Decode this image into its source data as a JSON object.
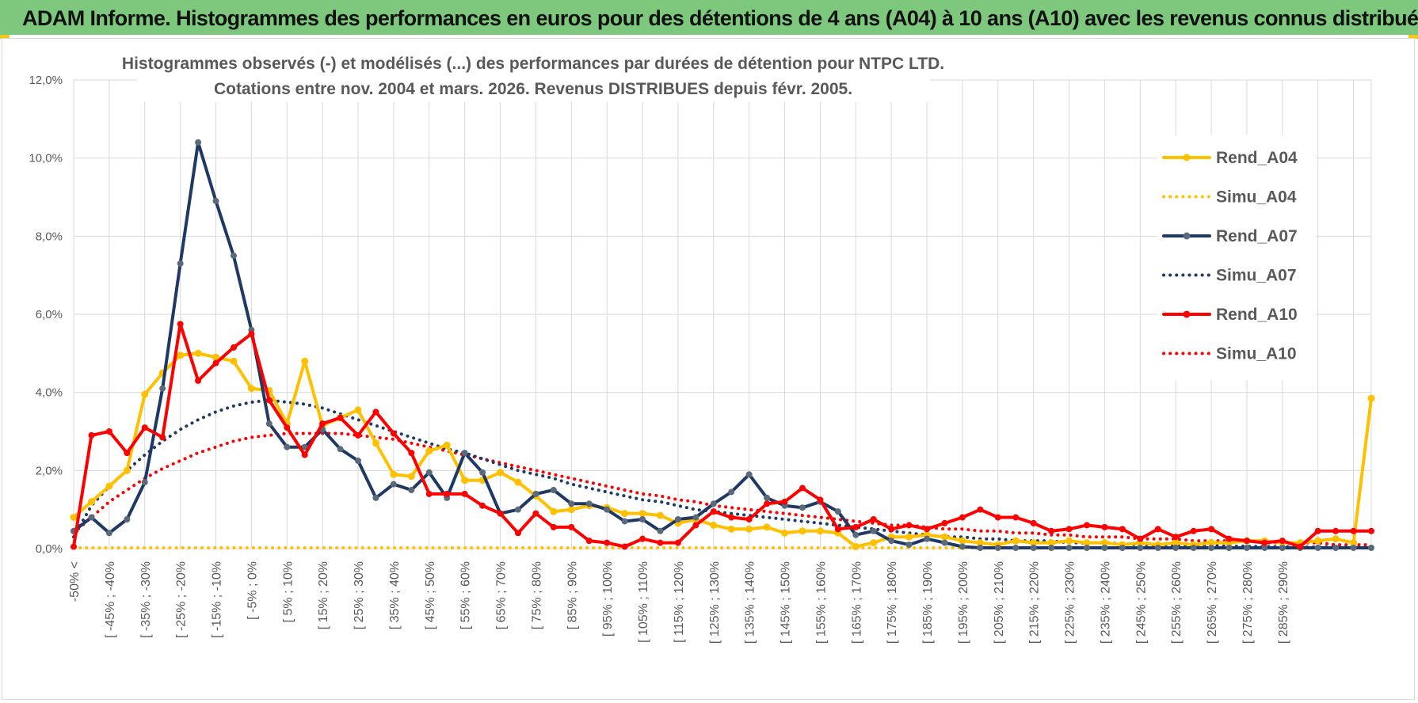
{
  "banner": {
    "title": "ADAM Informe. Histogrammes des performances en euros pour des détentions de 4 ans (A04) à 10 ans (A10) avec les revenus connus distribués"
  },
  "colors": {
    "banner_bg": "#7dc87d",
    "a04": "#ffc000",
    "a07": "#1f3864",
    "a10": "#ff0000",
    "grid": "#d9d9d9",
    "text": "#595959"
  },
  "chart_data": {
    "type": "line",
    "title_lines": [
      "Histogrammes observés (-) et modélisés (...) des performances par durées de détention pour NTPC LTD.",
      "Cotations entre nov. 2004 et mars. 2026. Revenus DISTRIBUES depuis févr. 2005."
    ],
    "y_unit": "%",
    "ylim": [
      0,
      12
    ],
    "y_ticks": [
      "0,0%",
      "2,0%",
      "4,0%",
      "6,0%",
      "8,0%",
      "10,0%",
      "12,0%"
    ],
    "grid": true,
    "legend_position": "right",
    "category_labels": [
      "-50% <",
      "[ -45% ; -40%",
      "[ -35% ; -30%",
      "[ -25% ; -20%",
      "[ -15% ; -10%",
      "[ -5% ; 0%",
      "[ 5% ; 10%",
      "[ 15% ; 20%",
      "[ 25% ; 30%",
      "[ 35% ; 40%",
      "[ 45% ; 50%",
      "[ 55% ; 60%",
      "[ 65% ; 70%",
      "[ 75% ; 80%",
      "[ 85% ; 90%",
      "[ 95% ; 100%",
      "[ 105% ; 110%",
      "[ 115% ; 120%",
      "[ 125% ; 130%",
      "[ 135% ; 140%",
      "[ 145% ; 150%",
      "[ 155% ; 160%",
      "[ 165% ; 170%",
      "[ 175% ; 180%",
      "[ 185% ; 190%",
      "[ 195% ; 200%",
      "[ 205% ; 210%",
      "[ 215% ; 220%",
      "[ 225% ; 230%",
      "[ 235% ; 240%",
      "[ 245% ; 250%",
      "[ 255% ; 260%",
      "[ 265% ; 270%",
      "[ 275% ; 280%",
      "[ 285% ; 290%"
    ],
    "series": [
      {
        "name": "Rend_A04",
        "style": "solid",
        "color": "#ffc000",
        "values": [
          0.8,
          1.2,
          1.6,
          2.0,
          3.95,
          4.5,
          4.95,
          5.0,
          4.9,
          4.8,
          4.1,
          4.05,
          3.2,
          4.8,
          3.15,
          3.35,
          3.55,
          2.7,
          1.9,
          1.85,
          2.5,
          2.65,
          1.75,
          1.75,
          1.95,
          1.7,
          1.35,
          0.95,
          1.0,
          1.1,
          1.05,
          0.9,
          0.9,
          0.85,
          0.65,
          0.75,
          0.6,
          0.5,
          0.5,
          0.55,
          0.4,
          0.45,
          0.45,
          0.4,
          0.05,
          0.15,
          0.3,
          0.3,
          0.35,
          0.3,
          0.2,
          0.15,
          0.1,
          0.2,
          0.15,
          0.15,
          0.2,
          0.15,
          0.15,
          0.1,
          0.15,
          0.1,
          0.15,
          0.1,
          0.15,
          0.15,
          0.2,
          0.2,
          0.15,
          0.15,
          0.2,
          0.25,
          0.15,
          3.85
        ]
      },
      {
        "name": "Simu_A04",
        "style": "dotted",
        "color": "#ffc000",
        "values": [
          0.02,
          0.02,
          0.02,
          0.02,
          0.02,
          0.02,
          0.02,
          0.02,
          0.02,
          0.02,
          0.02,
          0.02,
          0.02,
          0.02,
          0.02,
          0.02,
          0.02,
          0.02,
          0.02,
          0.02,
          0.02,
          0.02,
          0.02,
          0.02,
          0.02,
          0.02,
          0.02,
          0.02,
          0.02,
          0.02,
          0.02,
          0.02,
          0.02,
          0.02,
          0.02,
          0.02,
          0.02,
          0.02,
          0.02,
          0.02,
          0.02,
          0.02,
          0.02,
          0.02,
          0.02,
          0.02,
          0.02,
          0.02,
          0.02,
          0.02,
          0.02,
          0.02,
          0.02,
          0.02,
          0.02,
          0.02,
          0.02,
          0.02,
          0.02,
          0.02,
          0.02,
          0.02,
          0.02,
          0.02,
          0.02,
          0.02,
          0.02,
          0.02,
          0.02,
          0.02,
          0.02,
          0.02,
          0.02,
          0.02
        ]
      },
      {
        "name": "Rend_A07",
        "style": "solid-markers",
        "color": "#1f3864",
        "values": [
          0.45,
          0.8,
          0.4,
          0.75,
          1.7,
          4.1,
          7.3,
          10.4,
          8.9,
          7.5,
          5.6,
          3.2,
          2.6,
          2.6,
          3.05,
          2.55,
          2.25,
          1.3,
          1.65,
          1.5,
          1.95,
          1.3,
          2.45,
          1.95,
          0.9,
          1.0,
          1.4,
          1.5,
          1.15,
          1.15,
          1.0,
          0.7,
          0.75,
          0.45,
          0.75,
          0.8,
          1.15,
          1.45,
          1.9,
          1.3,
          1.1,
          1.05,
          1.2,
          0.95,
          0.35,
          0.45,
          0.2,
          0.1,
          0.25,
          0.15,
          0.05,
          0.02,
          0.02,
          0.02,
          0.02,
          0.02,
          0.02,
          0.02,
          0.02,
          0.02,
          0.02,
          0.02,
          0.02,
          0.02,
          0.02,
          0.02,
          0.02,
          0.02,
          0.02,
          0.02,
          0.02,
          0.02,
          0.02,
          0.02
        ]
      },
      {
        "name": "Simu_A07",
        "style": "dotted",
        "color": "#1f3864",
        "values": [
          0.3,
          1.1,
          1.6,
          2.0,
          2.4,
          2.75,
          3.05,
          3.3,
          3.5,
          3.65,
          3.75,
          3.8,
          3.75,
          3.7,
          3.6,
          3.45,
          3.3,
          3.15,
          3.0,
          2.85,
          2.7,
          2.55,
          2.45,
          2.3,
          2.15,
          2.0,
          1.9,
          1.8,
          1.65,
          1.55,
          1.45,
          1.35,
          1.25,
          1.2,
          1.1,
          1.0,
          0.95,
          0.9,
          0.85,
          0.8,
          0.75,
          0.7,
          0.65,
          0.6,
          0.55,
          0.5,
          0.45,
          0.4,
          0.35,
          0.3,
          0.3,
          0.25,
          0.25,
          0.2,
          0.2,
          0.2,
          0.15,
          0.15,
          0.15,
          0.12,
          0.1,
          0.1,
          0.1,
          0.08,
          0.08,
          0.06,
          0.06,
          0.05,
          0.05,
          0.04,
          0.04,
          0.04,
          0.03,
          0.03
        ]
      },
      {
        "name": "Rend_A10",
        "style": "solid-markers",
        "color": "#ff0000",
        "values": [
          0.05,
          2.9,
          3.0,
          2.45,
          3.1,
          2.85,
          5.75,
          4.3,
          4.75,
          5.15,
          5.5,
          3.8,
          3.1,
          2.4,
          3.2,
          3.35,
          2.9,
          3.5,
          2.95,
          2.45,
          1.4,
          1.4,
          1.4,
          1.1,
          0.9,
          0.4,
          0.9,
          0.55,
          0.55,
          0.2,
          0.15,
          0.05,
          0.25,
          0.15,
          0.15,
          0.6,
          0.95,
          0.8,
          0.75,
          1.15,
          1.2,
          1.55,
          1.25,
          0.5,
          0.55,
          0.75,
          0.5,
          0.6,
          0.5,
          0.65,
          0.8,
          1.0,
          0.8,
          0.8,
          0.65,
          0.45,
          0.5,
          0.6,
          0.55,
          0.5,
          0.25,
          0.5,
          0.3,
          0.45,
          0.5,
          0.25,
          0.2,
          0.15,
          0.2,
          0.05,
          0.45,
          0.45,
          0.45,
          0.45
        ]
      },
      {
        "name": "Simu_A10",
        "style": "dotted",
        "color": "#ff0000",
        "values": [
          0.4,
          0.8,
          1.2,
          1.5,
          1.8,
          2.05,
          2.25,
          2.45,
          2.6,
          2.75,
          2.85,
          2.9,
          2.95,
          2.95,
          2.95,
          2.95,
          2.9,
          2.85,
          2.8,
          2.7,
          2.6,
          2.5,
          2.4,
          2.3,
          2.2,
          2.1,
          2.0,
          1.9,
          1.8,
          1.7,
          1.6,
          1.5,
          1.4,
          1.35,
          1.25,
          1.2,
          1.1,
          1.05,
          1.0,
          0.95,
          0.9,
          0.85,
          0.8,
          0.75,
          0.7,
          0.65,
          0.6,
          0.6,
          0.55,
          0.5,
          0.5,
          0.45,
          0.45,
          0.4,
          0.4,
          0.35,
          0.35,
          0.3,
          0.3,
          0.3,
          0.25,
          0.25,
          0.25,
          0.2,
          0.2,
          0.2,
          0.2,
          0.15,
          0.15,
          0.15,
          0.15,
          0.1,
          0.1,
          0.1
        ]
      }
    ]
  }
}
